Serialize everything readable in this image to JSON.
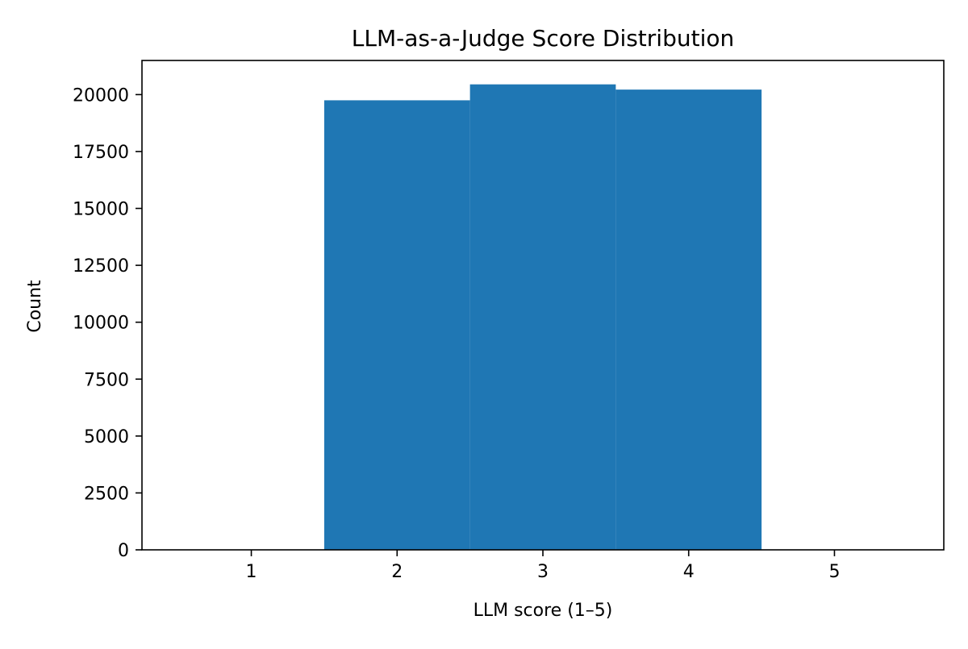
{
  "chart_data": {
    "type": "bar",
    "title": "LLM-as-a-Judge Score Distribution",
    "xlabel": "LLM score (1–5)",
    "ylabel": "Count",
    "categories": [
      1,
      2,
      3,
      4,
      5
    ],
    "values": [
      0,
      19750,
      20450,
      20220,
      0
    ],
    "xlim": [
      0.25,
      5.75
    ],
    "ylim": [
      0,
      21500
    ],
    "bar_width": 1.0,
    "x_ticks": [
      "1",
      "2",
      "3",
      "4",
      "5"
    ],
    "y_ticks": [
      0,
      2500,
      5000,
      7500,
      10000,
      12500,
      15000,
      17500,
      20000
    ],
    "y_tick_labels": [
      "0",
      "2500",
      "5000",
      "7500",
      "10000",
      "12500",
      "15000",
      "17500",
      "20000"
    ],
    "bar_color": "#1f77b4",
    "grid": false,
    "legend": "none"
  }
}
